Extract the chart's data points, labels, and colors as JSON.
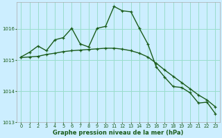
{
  "xlabel": "Graphe pression niveau de la mer (hPa)",
  "bg_color": "#cceeff",
  "grid_color": "#99ddcc",
  "line_color": "#1a5c1a",
  "x_data": [
    0,
    1,
    2,
    3,
    4,
    5,
    6,
    7,
    8,
    9,
    10,
    11,
    12,
    13,
    14,
    15,
    16,
    17,
    18,
    19,
    20,
    21,
    22,
    23
  ],
  "y_hourly": [
    1015.1,
    1015.25,
    1015.45,
    1015.3,
    1015.65,
    1015.72,
    1016.02,
    1015.52,
    1015.42,
    1016.02,
    1016.08,
    1016.72,
    1016.58,
    1016.55,
    1016.02,
    1015.52,
    1014.78,
    1014.45,
    1014.15,
    1014.12,
    1013.95,
    1013.62,
    1013.65,
    1013.28
  ],
  "y_trend": [
    1015.08,
    1015.1,
    1015.12,
    1015.18,
    1015.22,
    1015.27,
    1015.3,
    1015.32,
    1015.34,
    1015.36,
    1015.38,
    1015.38,
    1015.35,
    1015.3,
    1015.22,
    1015.1,
    1014.9,
    1014.68,
    1014.48,
    1014.28,
    1014.08,
    1013.88,
    1013.72,
    1013.5
  ],
  "ylim": [
    1013.0,
    1016.85
  ],
  "yticks": [
    1013,
    1014,
    1015,
    1016
  ],
  "xticks": [
    0,
    1,
    2,
    3,
    4,
    5,
    6,
    7,
    8,
    9,
    10,
    11,
    12,
    13,
    14,
    15,
    16,
    17,
    18,
    19,
    20,
    21,
    22,
    23
  ],
  "marker_size": 2.5,
  "line_width": 1.0
}
